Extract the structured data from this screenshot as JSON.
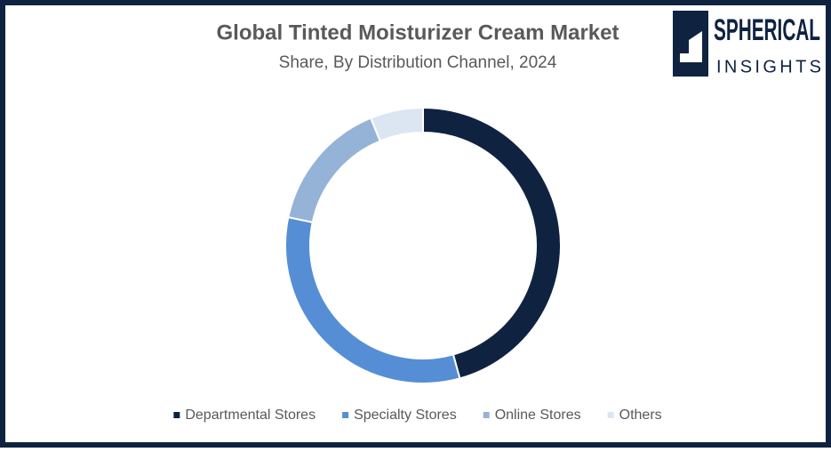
{
  "chart_data": {
    "type": "donut",
    "title": "Global Tinted Moisturizer Cream Market",
    "subtitle": "Share, By Distribution Channel, 2024",
    "categories": [
      "Departmental Stores",
      "Specialty Stores",
      "Online Stores",
      "Others"
    ],
    "values": [
      45.7,
      32.6,
      15.5,
      6.2
    ],
    "colors": [
      "#0f2341",
      "#558ed5",
      "#95b3d7",
      "#dce6f2"
    ],
    "legend": "bottom"
  },
  "logo": {
    "line1": "SPHERICAL",
    "line2": "INSIGHTS"
  }
}
